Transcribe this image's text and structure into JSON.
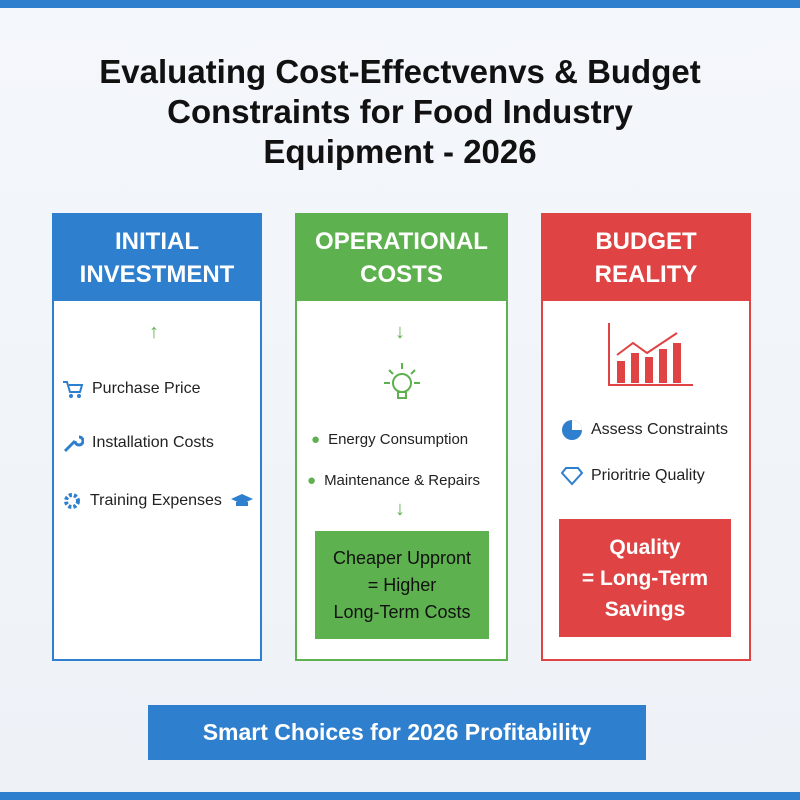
{
  "header": {
    "title_lines": [
      "Evaluating Cost-Effectvenvs & Budget",
      "Constraints for Food Industry",
      "Equipment - 2026"
    ]
  },
  "columns": [
    {
      "heading_lines": [
        "INITIAL",
        "INVESTMENT"
      ],
      "items": [
        "Purchase Price",
        "Installation Costs",
        "Training Expenses"
      ]
    },
    {
      "heading_lines": [
        "OPERATIONAL",
        "COSTS"
      ],
      "items": [
        "Energy Consumption",
        "Maintenance & Repairs"
      ],
      "callout_lines": [
        "Cheaper Uppront",
        "= Higher",
        "Long-Term Costs"
      ]
    },
    {
      "heading_lines": [
        "BUDGET",
        "REALITY"
      ],
      "items": [
        "Assess Constraints",
        "Prioritrie Quality"
      ],
      "callout_lines": [
        "Quality",
        "= Long-Term",
        "Savings"
      ]
    }
  ],
  "footer": {
    "banner": "Smart Choices for 2026 Profitability"
  }
}
